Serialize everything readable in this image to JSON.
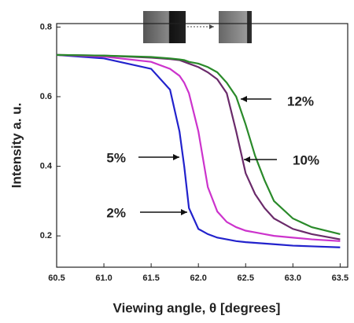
{
  "chart_data": {
    "type": "line",
    "x_label": "Viewing angle, θ [degrees]",
    "y_label": "Intensity  a. u.",
    "x": [
      60.5,
      61.0,
      61.5,
      61.7,
      61.8,
      61.85,
      61.9,
      62.0,
      62.1,
      62.2,
      62.3,
      62.4,
      62.5,
      62.6,
      62.7,
      62.8,
      63.0,
      63.2,
      63.5
    ],
    "series": [
      {
        "name": "2%",
        "color": "#2222cc",
        "values": [
          0.72,
          0.71,
          0.68,
          0.62,
          0.5,
          0.4,
          0.28,
          0.22,
          0.205,
          0.195,
          0.19,
          0.185,
          0.182,
          0.18,
          0.178,
          0.176,
          0.172,
          0.17,
          0.167
        ]
      },
      {
        "name": "5%",
        "color": "#cc33cc",
        "values": [
          0.72,
          0.715,
          0.7,
          0.68,
          0.66,
          0.64,
          0.61,
          0.5,
          0.34,
          0.27,
          0.24,
          0.225,
          0.215,
          0.21,
          0.205,
          0.2,
          0.195,
          0.19,
          0.185
        ]
      },
      {
        "name": "10%",
        "color": "#6a2a6a",
        "values": [
          0.72,
          0.718,
          0.712,
          0.708,
          0.705,
          0.7,
          0.695,
          0.685,
          0.67,
          0.65,
          0.61,
          0.5,
          0.38,
          0.32,
          0.28,
          0.25,
          0.22,
          0.205,
          0.19
        ]
      },
      {
        "name": "12%",
        "color": "#2a8a2a",
        "values": [
          0.72,
          0.718,
          0.714,
          0.71,
          0.707,
          0.705,
          0.7,
          0.695,
          0.685,
          0.67,
          0.64,
          0.6,
          0.52,
          0.43,
          0.36,
          0.3,
          0.25,
          0.225,
          0.205
        ]
      }
    ],
    "xlim": [
      60.5,
      63.58
    ],
    "ylim": [
      0.11,
      0.81
    ],
    "xticks": [
      60.5,
      {
        "value": 61,
        "label": "61.0"
      },
      61.5,
      {
        "value": 62,
        "label": "62.0"
      },
      62.5,
      {
        "value": 63,
        "label": "63.0"
      },
      63.5
    ],
    "yticks": [
      0.2,
      0.4,
      0.6,
      0.8
    ]
  }
}
